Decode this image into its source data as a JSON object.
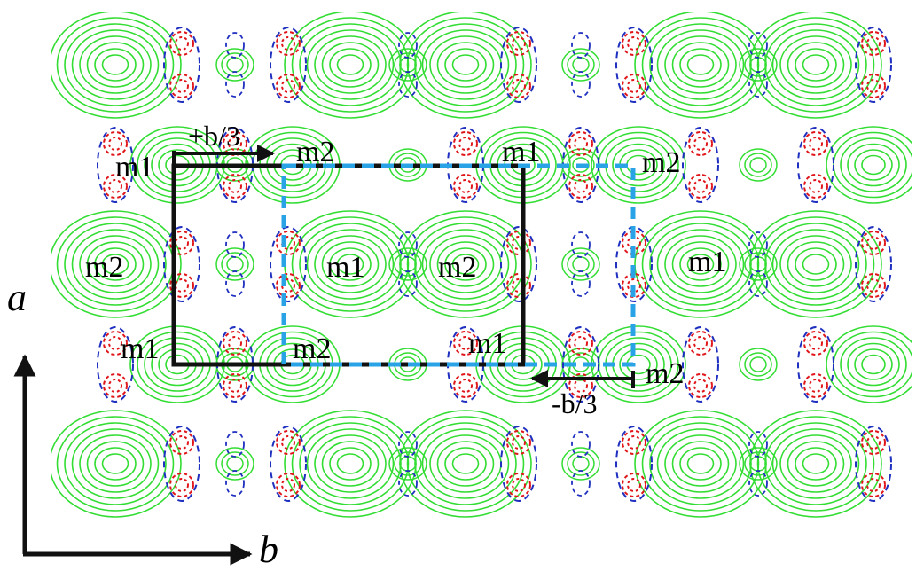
{
  "figure": {
    "labels": {
      "m1": "m1",
      "m2": "m2",
      "shift_plus": "+b/3",
      "shift_minus": "-b/3",
      "axis_a": "a",
      "axis_b": "b"
    },
    "colors": {
      "background": "#ffffff",
      "contour_positive": "#33dd33",
      "contour_negative_blue": "#1f2fbf",
      "contour_negative_red": "#e0161b",
      "cell_solid": "#111111",
      "cell_dashed": "#29a3e6",
      "arrow": "#111111"
    }
  }
}
